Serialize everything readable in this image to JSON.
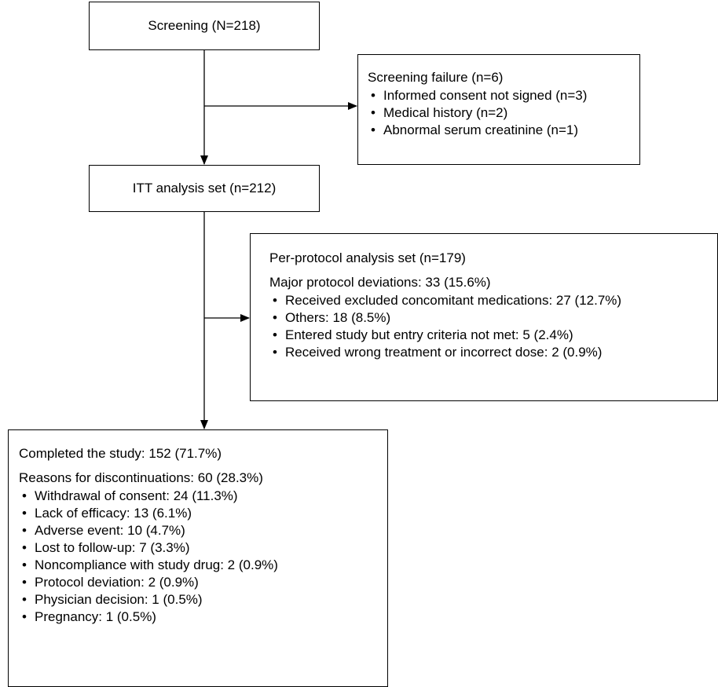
{
  "screening": {
    "label": "Screening (N=218)"
  },
  "screening_failure": {
    "title": "Screening failure (n=6)",
    "items": [
      "Informed consent not signed (n=3)",
      "Medical history (n=2)",
      "Abnormal serum creatinine (n=1)"
    ]
  },
  "itt": {
    "label": "ITT analysis set (n=212)"
  },
  "per_protocol": {
    "title": "Per-protocol analysis set (n=179)",
    "deviations_header": "Major protocol deviations: 33 (15.6%)",
    "items": [
      "Received excluded concomitant medications: 27 (12.7%)",
      "Others: 18 (8.5%)",
      "Entered study but entry criteria not met: 5 (2.4%)",
      "Received  wrong treatment or incorrect dose: 2 (0.9%)"
    ]
  },
  "completed": {
    "title": "Completed the study: 152 (71.7%)",
    "discontinuation_header": "Reasons for discontinuations: 60 (28.3%)",
    "items": [
      "Withdrawal of consent: 24 (11.3%)",
      "Lack of efficacy: 13 (6.1%)",
      "Adverse event: 10 (4.7%)",
      "Lost to follow-up: 7 (3.3%)",
      "Noncompliance with study drug: 2 (0.9%)",
      "Protocol deviation: 2 (0.9%)",
      "Physician decision: 1 (0.5%)",
      "Pregnancy: 1 (0.5%)"
    ]
  },
  "colors": {
    "line": "#000000",
    "box_fill": "#ffffff",
    "text": "#000000"
  }
}
